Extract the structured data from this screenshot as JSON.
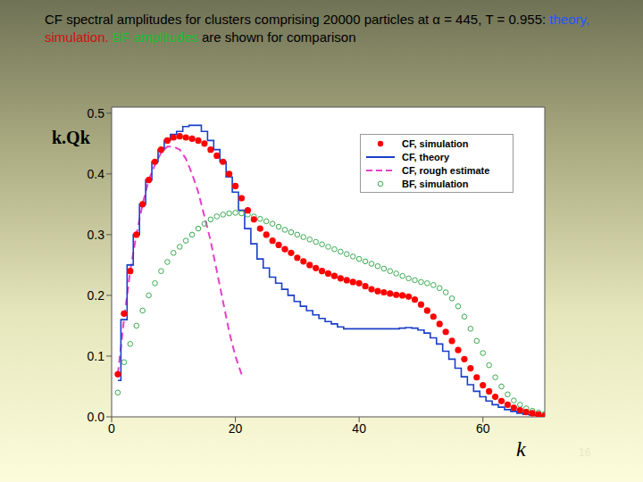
{
  "chart_data": {
    "type": "line",
    "title": [
      {
        "text": "CF spectral amplitudes for clusters comprising 20000 particles at α = 445, T = 0.955: ",
        "color": "#000000"
      },
      {
        "text": "theory,",
        "color": "#2255ff"
      },
      {
        "text": " ",
        "color": "#000000"
      },
      {
        "text": "simulation.",
        "color": "#d01010"
      },
      {
        "text": " ",
        "color": "#000000"
      },
      {
        "text": "BF amplitudes",
        "color": "#22bb33"
      },
      {
        "text": " are shown for comparison",
        "color": "#000000"
      }
    ],
    "xlabel": "k",
    "ylabel": "k.Qk",
    "annotations": [
      "16"
    ],
    "xlim": [
      0,
      70
    ],
    "xticks": [
      0,
      20,
      40,
      60
    ],
    "ylim": [
      0,
      0.51
    ],
    "yticks": [
      {
        "value": 0,
        "label": "0.0"
      },
      0.1,
      0.2,
      0.3,
      0.4,
      0.5
    ],
    "grid": false,
    "legend": "upper right",
    "x": [
      1,
      2,
      3,
      4,
      5,
      6,
      7,
      8,
      9,
      10,
      11,
      12,
      13,
      14,
      15,
      16,
      17,
      18,
      19,
      20,
      21,
      22,
      23,
      24,
      25,
      26,
      27,
      28,
      29,
      30,
      31,
      32,
      33,
      34,
      35,
      36,
      37,
      38,
      39,
      40,
      41,
      42,
      43,
      44,
      45,
      46,
      47,
      48,
      49,
      50,
      51,
      52,
      53,
      54,
      55,
      56,
      57,
      58,
      59,
      60,
      61,
      62,
      63,
      64,
      65,
      66,
      67,
      68,
      69,
      70
    ],
    "series": [
      {
        "name": "CF, simulation",
        "type": "scatter",
        "marker": "circle",
        "color": "#ff0000",
        "values": [
          0.07,
          0.17,
          0.24,
          0.3,
          0.35,
          0.39,
          0.42,
          0.44,
          0.455,
          0.46,
          0.462,
          0.46,
          0.458,
          0.455,
          0.45,
          0.44,
          0.43,
          0.42,
          0.4,
          0.38,
          0.36,
          0.34,
          0.325,
          0.31,
          0.3,
          0.29,
          0.283,
          0.276,
          0.27,
          0.262,
          0.256,
          0.25,
          0.245,
          0.24,
          0.236,
          0.232,
          0.228,
          0.225,
          0.222,
          0.22,
          0.215,
          0.21,
          0.207,
          0.205,
          0.203,
          0.201,
          0.2,
          0.198,
          0.193,
          0.185,
          0.175,
          0.165,
          0.153,
          0.14,
          0.125,
          0.11,
          0.095,
          0.08,
          0.065,
          0.052,
          0.042,
          0.033,
          0.026,
          0.02,
          0.015,
          0.011,
          0.008,
          0.006,
          0.004,
          0.002
        ]
      },
      {
        "name": "CF, theory",
        "type": "line",
        "line_style": "step",
        "color": "#1a3fc8",
        "values": [
          0.06,
          0.16,
          0.25,
          0.3,
          0.35,
          0.39,
          0.42,
          0.44,
          0.455,
          0.465,
          0.47,
          0.478,
          0.48,
          0.48,
          0.47,
          0.455,
          0.44,
          0.42,
          0.395,
          0.37,
          0.34,
          0.31,
          0.285,
          0.26,
          0.245,
          0.23,
          0.22,
          0.21,
          0.2,
          0.19,
          0.182,
          0.175,
          0.168,
          0.162,
          0.157,
          0.153,
          0.148,
          0.145,
          0.145,
          0.145,
          0.145,
          0.145,
          0.145,
          0.145,
          0.145,
          0.145,
          0.146,
          0.147,
          0.146,
          0.143,
          0.138,
          0.13,
          0.12,
          0.108,
          0.095,
          0.08,
          0.066,
          0.053,
          0.042,
          0.033,
          0.026,
          0.02,
          0.016,
          0.012,
          0.009,
          0.006,
          0.004,
          0.003,
          0.002,
          0.001
        ]
      },
      {
        "name": "CF, rough estimate",
        "type": "line",
        "line_style": "dashed",
        "color": "#e83fc8",
        "values": [
          0.07,
          0.16,
          0.24,
          0.3,
          0.35,
          0.39,
          0.415,
          0.435,
          0.445,
          0.445,
          0.44,
          0.425,
          0.4,
          0.37,
          0.33,
          0.29,
          0.24,
          0.19,
          0.14,
          0.1,
          0.07,
          null,
          null,
          null,
          null,
          null,
          null,
          null,
          null,
          null,
          null,
          null,
          null,
          null,
          null,
          null,
          null,
          null,
          null,
          null,
          null,
          null,
          null,
          null,
          null,
          null,
          null,
          null,
          null,
          null,
          null,
          null,
          null,
          null,
          null,
          null,
          null,
          null,
          null,
          null,
          null,
          null,
          null,
          null,
          null,
          null,
          null,
          null,
          null,
          null
        ]
      },
      {
        "name": "BF, simulation",
        "type": "scatter",
        "marker": "open_circle",
        "color": "#3aaa50",
        "values": [
          0.04,
          0.09,
          0.12,
          0.15,
          0.175,
          0.2,
          0.22,
          0.24,
          0.255,
          0.27,
          0.28,
          0.29,
          0.3,
          0.31,
          0.318,
          0.325,
          0.33,
          0.333,
          0.335,
          0.336,
          0.335,
          0.333,
          0.33,
          0.326,
          0.322,
          0.318,
          0.313,
          0.308,
          0.304,
          0.3,
          0.296,
          0.292,
          0.288,
          0.284,
          0.28,
          0.276,
          0.272,
          0.268,
          0.264,
          0.26,
          0.256,
          0.252,
          0.248,
          0.244,
          0.24,
          0.236,
          0.232,
          0.228,
          0.225,
          0.222,
          0.22,
          0.217,
          0.212,
          0.205,
          0.195,
          0.182,
          0.165,
          0.145,
          0.125,
          0.105,
          0.085,
          0.065,
          0.05,
          0.037,
          0.027,
          0.02,
          0.014,
          0.01,
          0.007,
          0.005
        ]
      }
    ]
  }
}
